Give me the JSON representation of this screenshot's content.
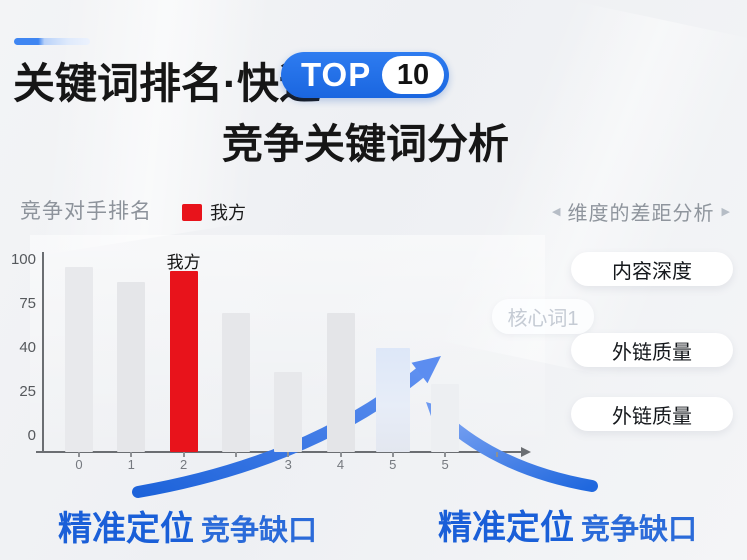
{
  "colors": {
    "accent_blue": "#1e6fe8",
    "deep_blue": "#1a5fd8",
    "red": "#e8131b",
    "title_black": "#161616",
    "gray_text": "#8d939b",
    "faded_text": "#c5cbd4",
    "axis": "#6b6e72"
  },
  "header": {
    "title": "关键词排名·快速",
    "badge_label": "TOP",
    "badge_number": "10",
    "subtitle": "竞争关键词分析"
  },
  "chart_header": {
    "title": "竞争对手排名",
    "legend_label": "我方"
  },
  "chart_data": {
    "type": "bar",
    "title": "竞争对手排名",
    "categories": [
      "0",
      "1",
      "2",
      "",
      "3",
      "4",
      "5",
      "5",
      ""
    ],
    "values": [
      100,
      92,
      98,
      75,
      43,
      75,
      56,
      37,
      null
    ],
    "bar_colors": [
      "#e8e9ec",
      "#e5e6e9",
      "#e8131b",
      "#e6e7ea",
      "#e7e8eb",
      "#e4e5e8",
      "#dce6f8",
      "#edeff2",
      null
    ],
    "annotated_bar": {
      "index": 2,
      "label": "我方"
    },
    "highlighted_bar_index": 6,
    "yticks": [
      "100",
      "75",
      "40",
      "25",
      "0"
    ],
    "ylim": [
      0,
      100
    ],
    "legend": [
      {
        "label": "我方",
        "color": "#e8131b"
      }
    ],
    "legend_position": "top",
    "grid": false
  },
  "dimension_panel": {
    "title": "维度的差距分析",
    "prev_icon": "◀",
    "next_icon": "▶",
    "pills": [
      "内容深度",
      "外链质量",
      "外链质量"
    ],
    "faded_tag": "核心词1"
  },
  "callouts": [
    {
      "strong": "精准定位",
      "rest": "竞争缺口"
    },
    {
      "strong": "精准定位",
      "rest": "竞争缺口"
    }
  ]
}
